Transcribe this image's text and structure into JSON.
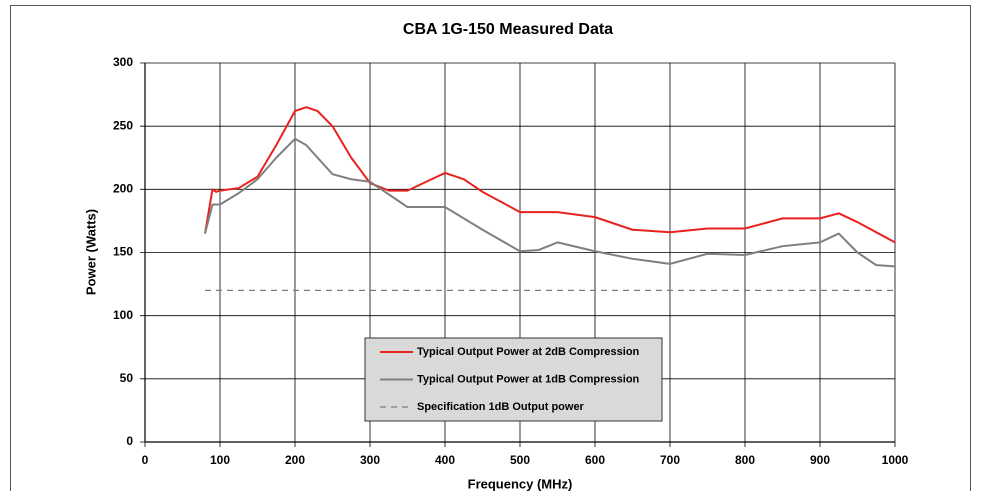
{
  "chart_data": {
    "type": "line",
    "title": "CBA 1G-150 Measured Data",
    "xlabel": "Frequency (MHz)",
    "ylabel": "Power (Watts)",
    "xlim": [
      0,
      1000
    ],
    "xticks": [
      0,
      100,
      200,
      300,
      400,
      500,
      600,
      700,
      800,
      900,
      1000
    ],
    "ylim": [
      0,
      300
    ],
    "yticks": [
      0,
      50,
      100,
      150,
      200,
      250,
      300
    ],
    "grid": true,
    "series": [
      {
        "name": "Typical Output Power at 2dB Compression",
        "color": "#e8231f",
        "style": "solid",
        "x": [
          80,
          90,
          95,
          100,
          125,
          150,
          175,
          200,
          215,
          230,
          250,
          275,
          300,
          325,
          350,
          375,
          400,
          425,
          450,
          500,
          550,
          600,
          650,
          700,
          750,
          800,
          850,
          900,
          925,
          950,
          1000
        ],
        "values": [
          165,
          200,
          198,
          199,
          201,
          210,
          235,
          262,
          265,
          262,
          250,
          225,
          205,
          199,
          199,
          206,
          213,
          208,
          198,
          182,
          182,
          178,
          168,
          166,
          169,
          169,
          177,
          177,
          181,
          174,
          158
        ]
      },
      {
        "name": "Typical Output Power at 1dB Compression",
        "color": "#7f7f7f",
        "style": "solid",
        "x": [
          80,
          90,
          100,
          125,
          150,
          175,
          200,
          215,
          250,
          275,
          300,
          325,
          350,
          400,
          450,
          500,
          525,
          550,
          600,
          650,
          700,
          750,
          800,
          850,
          900,
          925,
          950,
          975,
          1000
        ],
        "values": [
          165,
          188,
          188,
          197,
          208,
          225,
          240,
          235,
          212,
          208,
          206,
          196,
          186,
          186,
          168,
          151,
          152,
          158,
          151,
          145,
          141,
          149,
          148,
          155,
          158,
          165,
          150,
          140,
          139
        ]
      },
      {
        "name": "Specification 1dB Output power",
        "color": "#7f7f7f",
        "style": "dashed",
        "x": [
          80,
          1000
        ],
        "values": [
          120,
          120
        ]
      }
    ]
  }
}
